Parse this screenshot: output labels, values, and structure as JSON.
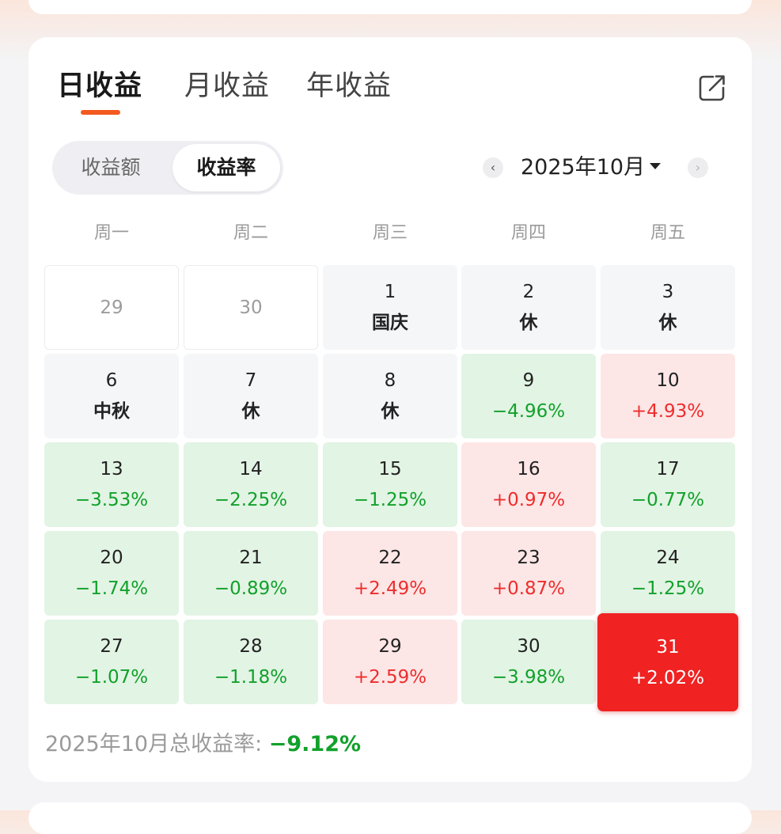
{
  "tabs": [
    {
      "label": "日收益",
      "active": true
    },
    {
      "label": "月收益",
      "active": false
    },
    {
      "label": "年收益",
      "active": false
    }
  ],
  "toggle": {
    "amount_label": "收益额",
    "rate_label": "收益率",
    "selected": "收益率"
  },
  "month_nav": {
    "prev_icon": "‹",
    "next_icon": "›",
    "label": "2025年10月"
  },
  "weekdays": [
    "周一",
    "周二",
    "周三",
    "周四",
    "周五"
  ],
  "colors": {
    "accent": "#f25a1f",
    "loss_text": "#12a12b",
    "loss_bg": "#e2f4e4",
    "gain_text": "#ee2d2d",
    "gain_bg": "#fde6e6",
    "selected_bg": "#f02222",
    "holiday_bg": "#f5f6f8"
  },
  "calendar": [
    [
      {
        "day": "29",
        "value": "",
        "kind": "out"
      },
      {
        "day": "30",
        "value": "",
        "kind": "out"
      },
      {
        "day": "1",
        "value": "国庆",
        "kind": "holiday"
      },
      {
        "day": "2",
        "value": "休",
        "kind": "holiday"
      },
      {
        "day": "3",
        "value": "休",
        "kind": "holiday"
      }
    ],
    [
      {
        "day": "6",
        "value": "中秋",
        "kind": "holiday"
      },
      {
        "day": "7",
        "value": "休",
        "kind": "holiday"
      },
      {
        "day": "8",
        "value": "休",
        "kind": "holiday"
      },
      {
        "day": "9",
        "value": "−4.96%",
        "kind": "loss"
      },
      {
        "day": "10",
        "value": "+4.93%",
        "kind": "gain"
      }
    ],
    [
      {
        "day": "13",
        "value": "−3.53%",
        "kind": "loss"
      },
      {
        "day": "14",
        "value": "−2.25%",
        "kind": "loss"
      },
      {
        "day": "15",
        "value": "−1.25%",
        "kind": "loss"
      },
      {
        "day": "16",
        "value": "+0.97%",
        "kind": "gain"
      },
      {
        "day": "17",
        "value": "−0.77%",
        "kind": "loss"
      }
    ],
    [
      {
        "day": "20",
        "value": "−1.74%",
        "kind": "loss"
      },
      {
        "day": "21",
        "value": "−0.89%",
        "kind": "loss"
      },
      {
        "day": "22",
        "value": "+2.49%",
        "kind": "gain"
      },
      {
        "day": "23",
        "value": "+0.87%",
        "kind": "gain"
      },
      {
        "day": "24",
        "value": "−1.25%",
        "kind": "loss"
      }
    ],
    [
      {
        "day": "27",
        "value": "−1.07%",
        "kind": "loss"
      },
      {
        "day": "28",
        "value": "−1.18%",
        "kind": "loss"
      },
      {
        "day": "29",
        "value": "+2.59%",
        "kind": "gain"
      },
      {
        "day": "30",
        "value": "−3.98%",
        "kind": "loss"
      },
      {
        "day": "31",
        "value": "+2.02%",
        "kind": "selected"
      }
    ]
  ],
  "summary": {
    "label": "2025年10月总收益率: ",
    "value": "−9.12%"
  }
}
